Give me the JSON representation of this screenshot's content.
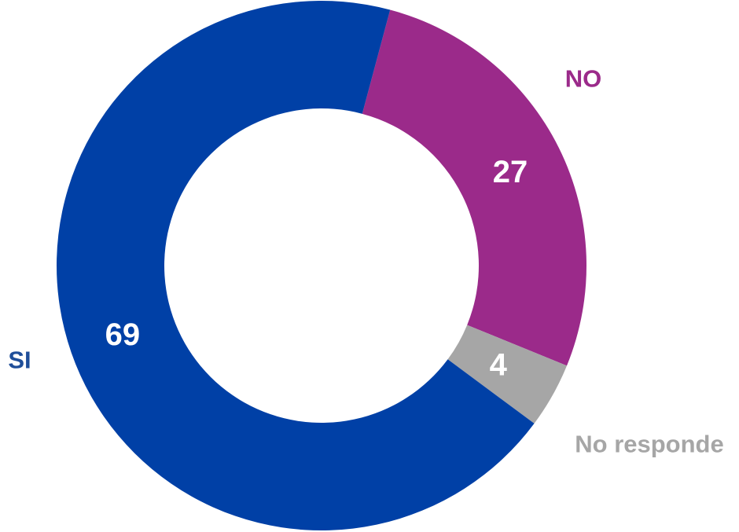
{
  "chart_data": {
    "type": "pie",
    "variant": "donut",
    "start_angle_deg": 15,
    "legend": "none",
    "slices": [
      {
        "label": "NO",
        "value": 27,
        "color": "#9B2A8A",
        "label_color": "#9B2A8A"
      },
      {
        "label": "No responde",
        "value": 4,
        "color": "#A6A6A6",
        "label_color": "#A6A6A6"
      },
      {
        "label": "SI",
        "value": 69,
        "color": "#0040A6",
        "label_color": "#1F4E99"
      }
    ]
  }
}
